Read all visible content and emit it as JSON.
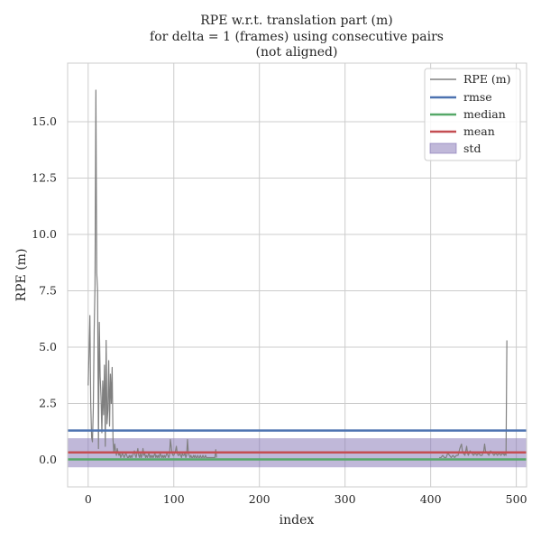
{
  "chart_data": {
    "type": "line",
    "title_lines": [
      "RPE w.r.t. translation part (m)",
      "for delta = 1 (frames) using consecutive pairs",
      "(not aligned)"
    ],
    "xlabel": "index",
    "ylabel": "RPE (m)",
    "xlim": [
      -24,
      512
    ],
    "ylim": [
      -1.2,
      17.6
    ],
    "x_ticks": [
      0,
      100,
      200,
      300,
      400,
      500
    ],
    "y_ticks": [
      0.0,
      2.5,
      5.0,
      7.5,
      10.0,
      12.5,
      15.0
    ],
    "y_tick_labels": [
      "0.0",
      "2.5",
      "5.0",
      "7.5",
      "10.0",
      "12.5",
      "15.0"
    ],
    "grid": true,
    "legend_position": "top-right",
    "stats": {
      "rmse": 1.3,
      "median": 0.02,
      "mean": 0.33,
      "std_band": [
        -0.33,
        0.96
      ]
    },
    "series": [
      {
        "name": "RPE (m)",
        "color": "#808080",
        "segments": [
          {
            "x": [
              0,
              1,
              2,
              3,
              4,
              5,
              6,
              7,
              8,
              9,
              10,
              11,
              12,
              13,
              14,
              15,
              16,
              17,
              18,
              19,
              20,
              21,
              22,
              23,
              24,
              25,
              26,
              27,
              28,
              29,
              30,
              31,
              32,
              33,
              34,
              35,
              36,
              37,
              38,
              39,
              40,
              41,
              42,
              43,
              44,
              45,
              46,
              47,
              48,
              49,
              50,
              51,
              52,
              53,
              54,
              55,
              56,
              57,
              58,
              59,
              60,
              61,
              62,
              63,
              64,
              65,
              66,
              67,
              68,
              69,
              70,
              71,
              72,
              73,
              74,
              75,
              76,
              77,
              78,
              79,
              80,
              81,
              82,
              83,
              84,
              85,
              86,
              87,
              88,
              89,
              90,
              91,
              92,
              93,
              94,
              95,
              96,
              97,
              98,
              99,
              100,
              101,
              102,
              103,
              104,
              105,
              106,
              107,
              108,
              109,
              110,
              111,
              112,
              113,
              114,
              115,
              116,
              117,
              118,
              119,
              120,
              121,
              122,
              123,
              124,
              125,
              126,
              127,
              128,
              129,
              130,
              131,
              132,
              133,
              134,
              135,
              136,
              137,
              138,
              139,
              140,
              141,
              142,
              143,
              144,
              145,
              146,
              147,
              148,
              149,
              150
            ],
            "y": [
              3.3,
              4.8,
              6.4,
              2.5,
              1.0,
              0.8,
              2.3,
              5.7,
              7.8,
              16.4,
              8.3,
              7.5,
              0.5,
              6.1,
              3.7,
              2.8,
              1.2,
              3.5,
              2.0,
              4.2,
              0.6,
              5.3,
              1.6,
              2.2,
              4.4,
              1.5,
              3.8,
              2.5,
              4.1,
              0.9,
              0.3,
              0.7,
              0.4,
              0.2,
              0.5,
              0.3,
              0.2,
              0.3,
              0.1,
              0.2,
              0.3,
              0.2,
              0.1,
              0.2,
              0.3,
              0.2,
              0.1,
              0.1,
              0.2,
              0.1,
              0.2,
              0.1,
              0.2,
              0.3,
              0.4,
              0.2,
              0.1,
              0.3,
              0.5,
              0.2,
              0.1,
              0.3,
              0.1,
              0.2,
              0.5,
              0.2,
              0.3,
              0.1,
              0.2,
              0.1,
              0.2,
              0.3,
              0.1,
              0.2,
              0.1,
              0.2,
              0.1,
              0.2,
              0.3,
              0.1,
              0.2,
              0.1,
              0.2,
              0.1,
              0.3,
              0.2,
              0.1,
              0.2,
              0.1,
              0.2,
              0.1,
              0.2,
              0.3,
              0.2,
              0.1,
              0.2,
              0.9,
              0.6,
              0.3,
              0.2,
              0.2,
              0.3,
              0.4,
              0.6,
              0.3,
              0.2,
              0.2,
              0.3,
              0.2,
              0.1,
              0.3,
              0.2,
              0.2,
              0.3,
              0.1,
              0.2,
              0.9,
              0.3,
              0.2,
              0.1,
              0.2,
              0.1,
              0.1,
              0.2,
              0.1,
              0.2,
              0.1,
              0.1,
              0.2,
              0.1,
              0.1,
              0.2,
              0.1,
              0.1,
              0.2,
              0.1,
              0.1,
              0.2,
              0.1,
              0.1,
              0.1,
              0.1,
              0.1,
              0.1,
              0.1,
              0.1,
              0.1,
              0.1,
              0.1,
              0.45,
              0.1
            ]
          },
          {
            "x": [
              410,
              412,
              414,
              416,
              418,
              420,
              422,
              424,
              426,
              428,
              430,
              432,
              434,
              435,
              436,
              437,
              438,
              440,
              442,
              443,
              444,
              446,
              448,
              450,
              452,
              454,
              456,
              458,
              460,
              462,
              463,
              464,
              466,
              468,
              470,
              472,
              474,
              476,
              478,
              480,
              482,
              484,
              486,
              487,
              488,
              489
            ],
            "y": [
              0.1,
              0.1,
              0.2,
              0.1,
              0.1,
              0.3,
              0.2,
              0.1,
              0.2,
              0.1,
              0.2,
              0.2,
              0.5,
              0.6,
              0.7,
              0.4,
              0.3,
              0.2,
              0.6,
              0.3,
              0.2,
              0.4,
              0.3,
              0.2,
              0.3,
              0.2,
              0.3,
              0.2,
              0.2,
              0.4,
              0.7,
              0.4,
              0.3,
              0.2,
              0.4,
              0.3,
              0.2,
              0.3,
              0.2,
              0.3,
              0.2,
              0.3,
              0.2,
              0.3,
              0.2,
              5.3
            ]
          }
        ]
      },
      {
        "name": "rmse",
        "color": "#4c72b0"
      },
      {
        "name": "median",
        "color": "#55a868"
      },
      {
        "name": "mean",
        "color": "#c44e52"
      },
      {
        "name": "std",
        "color": "#8172b3"
      }
    ]
  }
}
